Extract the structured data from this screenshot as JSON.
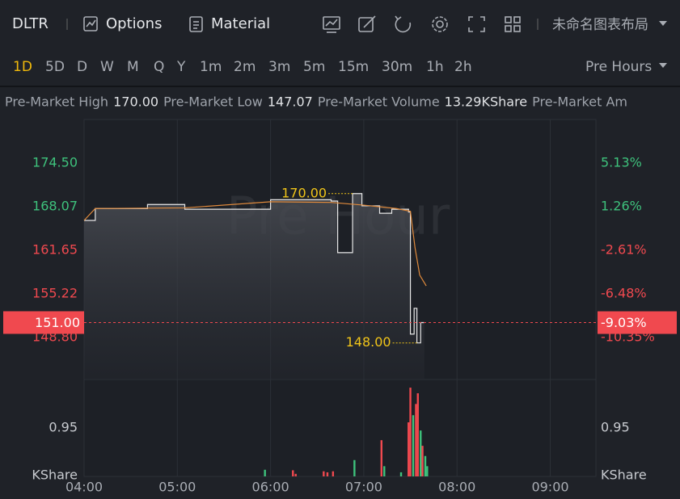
{
  "toolbar": {
    "symbol": "DLTR",
    "options": "Options",
    "material": "Material",
    "layout_name": "未命名图表布局"
  },
  "timeframes": {
    "items": [
      "1D",
      "5D",
      "D",
      "W",
      "M",
      "Q",
      "Y",
      "1m",
      "2m",
      "3m",
      "5m",
      "15m",
      "30m",
      "1h",
      "2h"
    ],
    "active": "1D",
    "session": "Pre Hours"
  },
  "stats": [
    {
      "label": "Pre-Market High",
      "value": "170.00"
    },
    {
      "label": "Pre-Market Low",
      "value": "147.07"
    },
    {
      "label": "Pre-Market Volume",
      "value": "13.29KShare"
    },
    {
      "label": "Pre-Market Am",
      "value": null
    }
  ],
  "chart_data": {
    "type": "line",
    "watermark": "Pre Hour",
    "xlim": [
      4,
      9.49
    ],
    "xticks": [
      {
        "value": 4,
        "label": "04:00"
      },
      {
        "value": 5,
        "label": "05:00"
      },
      {
        "value": 6,
        "label": "06:00"
      },
      {
        "value": 7,
        "label": "07:00"
      },
      {
        "value": 8,
        "label": "08:00"
      },
      {
        "value": 9,
        "label": "09:00"
      }
    ],
    "ylim": [
      142.61,
      180.92
    ],
    "yticks": [
      {
        "value": 148.8,
        "label": "148.80"
      },
      {
        "value": 155.22,
        "label": "155.22"
      },
      {
        "value": 161.65,
        "label": "161.65"
      },
      {
        "value": 168.07,
        "label": "168.07"
      },
      {
        "value": 174.5,
        "label": "174.50"
      }
    ],
    "y2lim": [
      -14.08,
      9.0
    ],
    "y2ticks": [
      {
        "value": -10.35,
        "label": "-10.35%"
      },
      {
        "value": -6.48,
        "label": "-6.48%"
      },
      {
        "value": -2.61,
        "label": "-2.61%"
      },
      {
        "value": 1.26,
        "label": "1.26%"
      },
      {
        "value": 5.13,
        "label": "5.13%"
      }
    ],
    "up_color": "#3ec27c",
    "down_color": "#f0494f",
    "grid": true,
    "series": [
      {
        "color": "#e8e8e8",
        "step": true,
        "area": true,
        "x": [
          4.0,
          4.12,
          4.68,
          5.08,
          6.0,
          6.65,
          6.72,
          6.88,
          6.98,
          7.17,
          7.3,
          7.48,
          7.5,
          7.54,
          7.57,
          7.61,
          7.65
        ],
        "values": [
          166.05,
          167.8,
          168.4,
          167.7,
          169.1,
          168.9,
          161.3,
          170.0,
          168.2,
          167.1,
          167.7,
          167.3,
          149.3,
          153.1,
          148.0,
          151.0,
          151.0
        ]
      },
      {
        "color": "#e08a3c",
        "step": false,
        "area": false,
        "x": [
          4.0,
          4.12,
          5.08,
          6.0,
          6.65,
          7.0,
          7.35,
          7.5,
          7.55,
          7.6,
          7.67
        ],
        "values": [
          166.05,
          167.8,
          167.9,
          168.8,
          168.7,
          168.3,
          167.8,
          167.4,
          162.0,
          158.0,
          156.4
        ]
      }
    ],
    "last_price": {
      "value": 151,
      "label": "151.00"
    },
    "last_change": {
      "value": -9.03,
      "label": "-9.03%"
    },
    "annotations": [
      {
        "x": 6.88,
        "value": 170,
        "label": "170.00"
      },
      {
        "x": 7.57,
        "value": 148,
        "label": "148.00"
      }
    ],
    "annotation_color": "#f0c419",
    "volume": {
      "ylim": [
        0,
        1.9
      ],
      "yticks": [
        0.95
      ],
      "axis_label": "KShare",
      "x": [
        5.94,
        6.24,
        6.27,
        6.57,
        6.61,
        6.67,
        6.9,
        7.19,
        7.22,
        7.4,
        7.48,
        7.5,
        7.53,
        7.56,
        7.58,
        7.61,
        7.63,
        7.66,
        7.68
      ],
      "values": [
        0.13,
        0.12,
        0.05,
        0.1,
        0.08,
        0.1,
        0.32,
        0.71,
        0.2,
        0.08,
        1.06,
        1.74,
        1.2,
        1.42,
        1.63,
        0.9,
        0.6,
        0.4,
        0.2
      ],
      "colors": [
        "#3ec27c",
        "#f0494f",
        "#f0494f",
        "#f0494f",
        "#f0494f",
        "#f0494f",
        "#3ec27c",
        "#f0494f",
        "#3ec27c",
        "#3ec27c",
        "#f0494f",
        "#f0494f",
        "#3ec27c",
        "#f0494f",
        "#f0494f",
        "#3ec27c",
        "#f0494f",
        "#3ec27c",
        "#3ec27c"
      ]
    }
  }
}
